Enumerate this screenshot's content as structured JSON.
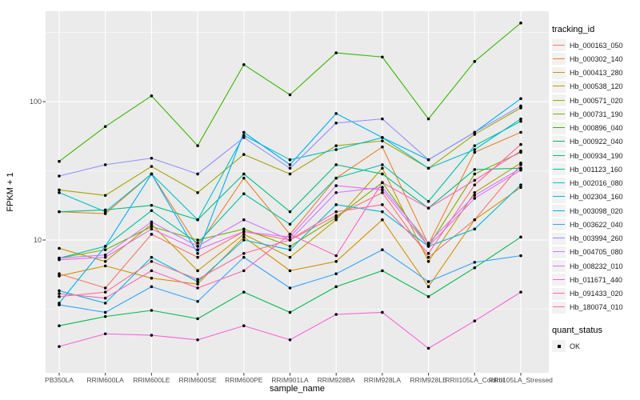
{
  "chart_data": {
    "type": "line",
    "title": "",
    "xlabel": "sample_name",
    "ylabel": "FPKM + 1",
    "y_scale": "log10",
    "ylim": [
      1.05,
      450
    ],
    "y_ticks": [
      100,
      10
    ],
    "y_minor_gridlines": [
      316.2,
      31.62,
      3.162
    ],
    "grid": true,
    "legend_position": "right",
    "point_color": "#000000",
    "categories": [
      "PB350LA",
      "RRIM600LA",
      "RRIM600LE",
      "RRIM600SE",
      "RRIM600PE",
      "RRIM901LA",
      "RRIM928BA",
      "RRIM928LA",
      "RRIM928LE",
      "RRII105LA_Control",
      "RRII105LA_Stressed"
    ],
    "series": [
      {
        "name": "Hb_000163_050",
        "color": "#F8766D",
        "values": [
          5.7,
          4.5,
          11,
          7.5,
          11.5,
          10,
          15,
          22,
          7.5,
          14,
          35
        ]
      },
      {
        "name": "Hb_000302_140",
        "color": "#EA8331",
        "values": [
          16,
          15.5,
          30,
          9,
          28,
          11,
          28,
          47,
          9.3,
          43,
          60
        ]
      },
      {
        "name": "Hb_000413_280",
        "color": "#D89000",
        "values": [
          5.5,
          6.5,
          5.3,
          4.8,
          10.5,
          6,
          7,
          14,
          4.6,
          14,
          24
        ]
      },
      {
        "name": "Hb_000538_120",
        "color": "#C09B00",
        "values": [
          8.7,
          7,
          13,
          6,
          11,
          7.5,
          14,
          33,
          7,
          22,
          36
        ]
      },
      {
        "name": "Hb_000571_020",
        "color": "#A3A500",
        "values": [
          23,
          21,
          34,
          22,
          41.5,
          30,
          48,
          52,
          33,
          58,
          90
        ]
      },
      {
        "name": "Hb_000731_190",
        "color": "#7CAE00",
        "values": [
          7.4,
          8.5,
          12.5,
          10,
          12,
          9,
          14.5,
          26,
          9,
          30,
          43
        ]
      },
      {
        "name": "Hb_000896_040",
        "color": "#39B600",
        "values": [
          37,
          66,
          110,
          48,
          185,
          112,
          225,
          210,
          75,
          195,
          370
        ]
      },
      {
        "name": "Hb_000922_040",
        "color": "#00BB4E",
        "values": [
          2.4,
          2.8,
          3.1,
          2.7,
          4.2,
          3.0,
          4.6,
          6.0,
          3.9,
          6.3,
          10.5
        ]
      },
      {
        "name": "Hb_000934_190",
        "color": "#00BF7D",
        "values": [
          16,
          16.5,
          17.8,
          14,
          30,
          16,
          35,
          30,
          17,
          32.3,
          33
        ]
      },
      {
        "name": "Hb_001123_160",
        "color": "#00C1A3",
        "values": [
          7.4,
          9,
          16.3,
          9.5,
          21.6,
          13,
          28,
          35,
          19,
          48,
          72
        ]
      },
      {
        "name": "Hb_002016_080",
        "color": "#00C0C4",
        "values": [
          22,
          16,
          30,
          14,
          57,
          38,
          45,
          55,
          33,
          45,
          75
        ]
      },
      {
        "name": "Hb_002304_160",
        "color": "#00BAE0",
        "values": [
          4.3,
          3.5,
          7.5,
          5,
          10,
          8.5,
          18,
          16,
          9,
          12,
          25
        ]
      },
      {
        "name": "Hb_003098_020",
        "color": "#00B0F6",
        "values": [
          3.5,
          9,
          30,
          8,
          60,
          35,
          82,
          55,
          38,
          60,
          105
        ]
      },
      {
        "name": "Hb_003622_040",
        "color": "#35A2FF",
        "values": [
          3.4,
          3.0,
          4.6,
          3.6,
          7.5,
          4.5,
          5.7,
          8.5,
          5,
          6.9,
          7.7
        ]
      },
      {
        "name": "Hb_003994_260",
        "color": "#9590FF",
        "values": [
          29,
          35,
          39,
          30,
          55,
          33,
          70,
          75,
          38,
          60,
          93
        ]
      },
      {
        "name": "Hb_004705_080",
        "color": "#C77CFF",
        "values": [
          7.4,
          7.8,
          13.5,
          9,
          14,
          10,
          22,
          24,
          9.5,
          21,
          33
        ]
      },
      {
        "name": "Hb_008232_010",
        "color": "#E76BF3",
        "values": [
          7.2,
          7.5,
          12,
          8.5,
          11.5,
          10.5,
          24.7,
          23,
          9,
          20,
          32
        ]
      },
      {
        "name": "Hb_011671_440",
        "color": "#FA62DB",
        "values": [
          1.7,
          2.1,
          2.05,
          1.9,
          2.4,
          1.9,
          2.9,
          3.0,
          1.65,
          2.6,
          4.2
        ]
      },
      {
        "name": "Hb_091433_020",
        "color": "#FF62BC",
        "values": [
          4.1,
          3.8,
          6.0,
          4.5,
          6,
          11,
          7.7,
          26,
          17,
          27,
          44
        ]
      },
      {
        "name": "Hb_180074_010",
        "color": "#FF6A98",
        "values": [
          3.9,
          4.2,
          7,
          5.2,
          8,
          10,
          16,
          18,
          8,
          25,
          49
        ]
      }
    ]
  },
  "legend": {
    "color_title": "tracking_id",
    "shape_title": "quant_status",
    "shape_items": [
      {
        "label": "OK"
      }
    ]
  },
  "theme": {
    "panel_bg": "#EBEBEB",
    "grid_color": "#FFFFFF",
    "key_bg": "#F2F2F2",
    "tick_color": "#333333",
    "tick_text_color": "#4D4D4D"
  }
}
